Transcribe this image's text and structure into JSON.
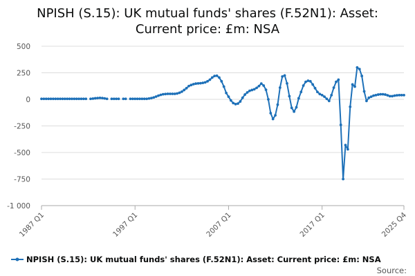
{
  "chart_data": {
    "type": "line",
    "title_lines": [
      "NPISH (S.15): UK mutual funds' shares (F.52N1): Asset:",
      "Current price: £m: NSA"
    ],
    "xlabel": "",
    "ylabel": "",
    "ylim": [
      -1000,
      500
    ],
    "yticks": [
      "500",
      "250",
      "0",
      "-250",
      "-500",
      "-750",
      "-1 000"
    ],
    "x_tick_labels": [
      "1987 Q1",
      "1997 Q1",
      "2007 Q1",
      "2017 Q1",
      "2025 Q4"
    ],
    "grid": "horizontal",
    "legend_position": "bottom",
    "series_color": "#1d70b8",
    "source_label": "Source:",
    "series": [
      {
        "name": "NPISH (S.15): UK mutual funds' shares (F.52N1): Asset: Current price: £m: NSA",
        "points": [
          [
            "1987 Q1",
            5
          ],
          [
            "1987 Q2",
            5
          ],
          [
            "1987 Q3",
            5
          ],
          [
            "1987 Q4",
            5
          ],
          [
            "1988 Q1",
            5
          ],
          [
            "1988 Q2",
            5
          ],
          [
            "1988 Q3",
            5
          ],
          [
            "1988 Q4",
            5
          ],
          [
            "1989 Q1",
            5
          ],
          [
            "1989 Q2",
            5
          ],
          [
            "1989 Q3",
            5
          ],
          [
            "1989 Q4",
            5
          ],
          [
            "1990 Q1",
            5
          ],
          [
            "1990 Q2",
            5
          ],
          [
            "1990 Q3",
            5
          ],
          [
            "1990 Q4",
            5
          ],
          [
            "1991 Q1",
            5
          ],
          [
            "1991 Q2",
            5
          ],
          [
            "1991 Q3",
            5
          ],
          [
            "1991 Q4",
            5
          ],
          [
            "1992 Q1",
            null
          ],
          [
            "1992 Q2",
            5
          ],
          [
            "1992 Q3",
            7
          ],
          [
            "1992 Q4",
            10
          ],
          [
            "1993 Q1",
            12
          ],
          [
            "1993 Q2",
            14
          ],
          [
            "1993 Q3",
            12
          ],
          [
            "1993 Q4",
            9
          ],
          [
            "1994 Q1",
            5
          ],
          [
            "1994 Q2",
            null
          ],
          [
            "1994 Q3",
            5
          ],
          [
            "1994 Q4",
            5
          ],
          [
            "1995 Q1",
            5
          ],
          [
            "1995 Q2",
            5
          ],
          [
            "1995 Q3",
            null
          ],
          [
            "1995 Q4",
            5
          ],
          [
            "1996 Q1",
            5
          ],
          [
            "1996 Q2",
            null
          ],
          [
            "1996 Q3",
            5
          ],
          [
            "1996 Q4",
            5
          ],
          [
            "1997 Q1",
            5
          ],
          [
            "1997 Q2",
            5
          ],
          [
            "1997 Q3",
            5
          ],
          [
            "1997 Q4",
            5
          ],
          [
            "1998 Q1",
            5
          ],
          [
            "1998 Q2",
            5
          ],
          [
            "1998 Q3",
            8
          ],
          [
            "1998 Q4",
            12
          ],
          [
            "1999 Q1",
            18
          ],
          [
            "1999 Q2",
            26
          ],
          [
            "1999 Q3",
            35
          ],
          [
            "1999 Q4",
            42
          ],
          [
            "2000 Q1",
            48
          ],
          [
            "2000 Q2",
            50
          ],
          [
            "2000 Q3",
            52
          ],
          [
            "2000 Q4",
            52
          ],
          [
            "2001 Q1",
            52
          ],
          [
            "2001 Q2",
            52
          ],
          [
            "2001 Q3",
            55
          ],
          [
            "2001 Q4",
            62
          ],
          [
            "2002 Q1",
            72
          ],
          [
            "2002 Q2",
            88
          ],
          [
            "2002 Q3",
            105
          ],
          [
            "2002 Q4",
            125
          ],
          [
            "2003 Q1",
            135
          ],
          [
            "2003 Q2",
            143
          ],
          [
            "2003 Q3",
            148
          ],
          [
            "2003 Q4",
            150
          ],
          [
            "2004 Q1",
            152
          ],
          [
            "2004 Q2",
            155
          ],
          [
            "2004 Q3",
            160
          ],
          [
            "2004 Q4",
            170
          ],
          [
            "2005 Q1",
            185
          ],
          [
            "2005 Q2",
            205
          ],
          [
            "2005 Q3",
            220
          ],
          [
            "2005 Q4",
            222
          ],
          [
            "2006 Q1",
            205
          ],
          [
            "2006 Q2",
            170
          ],
          [
            "2006 Q3",
            120
          ],
          [
            "2006 Q4",
            60
          ],
          [
            "2007 Q1",
            25
          ],
          [
            "2007 Q2",
            -10
          ],
          [
            "2007 Q3",
            -35
          ],
          [
            "2007 Q4",
            -45
          ],
          [
            "2008 Q1",
            -40
          ],
          [
            "2008 Q2",
            -20
          ],
          [
            "2008 Q3",
            15
          ],
          [
            "2008 Q4",
            45
          ],
          [
            "2009 Q1",
            65
          ],
          [
            "2009 Q2",
            80
          ],
          [
            "2009 Q3",
            88
          ],
          [
            "2009 Q4",
            95
          ],
          [
            "2010 Q1",
            108
          ],
          [
            "2010 Q2",
            125
          ],
          [
            "2010 Q3",
            148
          ],
          [
            "2010 Q4",
            130
          ],
          [
            "2011 Q1",
            90
          ],
          [
            "2011 Q2",
            0
          ],
          [
            "2011 Q3",
            -130
          ],
          [
            "2011 Q4",
            -185
          ],
          [
            "2012 Q1",
            -150
          ],
          [
            "2012 Q2",
            -50
          ],
          [
            "2012 Q3",
            110
          ],
          [
            "2012 Q4",
            215
          ],
          [
            "2013 Q1",
            225
          ],
          [
            "2013 Q2",
            150
          ],
          [
            "2013 Q3",
            30
          ],
          [
            "2013 Q4",
            -80
          ],
          [
            "2014 Q1",
            -115
          ],
          [
            "2014 Q2",
            -75
          ],
          [
            "2014 Q3",
            10
          ],
          [
            "2014 Q4",
            70
          ],
          [
            "2015 Q1",
            130
          ],
          [
            "2015 Q2",
            165
          ],
          [
            "2015 Q3",
            175
          ],
          [
            "2015 Q4",
            170
          ],
          [
            "2016 Q1",
            140
          ],
          [
            "2016 Q2",
            105
          ],
          [
            "2016 Q3",
            70
          ],
          [
            "2016 Q4",
            50
          ],
          [
            "2017 Q1",
            40
          ],
          [
            "2017 Q2",
            25
          ],
          [
            "2017 Q3",
            5
          ],
          [
            "2017 Q4",
            -15
          ],
          [
            "2018 Q1",
            40
          ],
          [
            "2018 Q2",
            110
          ],
          [
            "2018 Q3",
            165
          ],
          [
            "2018 Q4",
            185
          ],
          [
            "2019 Q1",
            -240
          ],
          [
            "2019 Q2",
            -750
          ],
          [
            "2019 Q3",
            -430
          ],
          [
            "2019 Q4",
            -470
          ],
          [
            "2020 Q1",
            -70
          ],
          [
            "2020 Q2",
            140
          ],
          [
            "2020 Q3",
            120
          ],
          [
            "2020 Q4",
            300
          ],
          [
            "2021 Q1",
            285
          ],
          [
            "2021 Q2",
            220
          ],
          [
            "2021 Q3",
            75
          ],
          [
            "2021 Q4",
            -15
          ],
          [
            "2022 Q1",
            15
          ],
          [
            "2022 Q2",
            25
          ],
          [
            "2022 Q3",
            35
          ],
          [
            "2022 Q4",
            40
          ],
          [
            "2023 Q1",
            45
          ],
          [
            "2023 Q2",
            48
          ],
          [
            "2023 Q3",
            48
          ],
          [
            "2023 Q4",
            45
          ],
          [
            "2024 Q1",
            38
          ],
          [
            "2024 Q2",
            30
          ],
          [
            "2024 Q3",
            30
          ],
          [
            "2024 Q4",
            35
          ],
          [
            "2025 Q1",
            38
          ],
          [
            "2025 Q2",
            40
          ],
          [
            "2025 Q3",
            40
          ],
          [
            "2025 Q4",
            40
          ]
        ]
      }
    ]
  }
}
